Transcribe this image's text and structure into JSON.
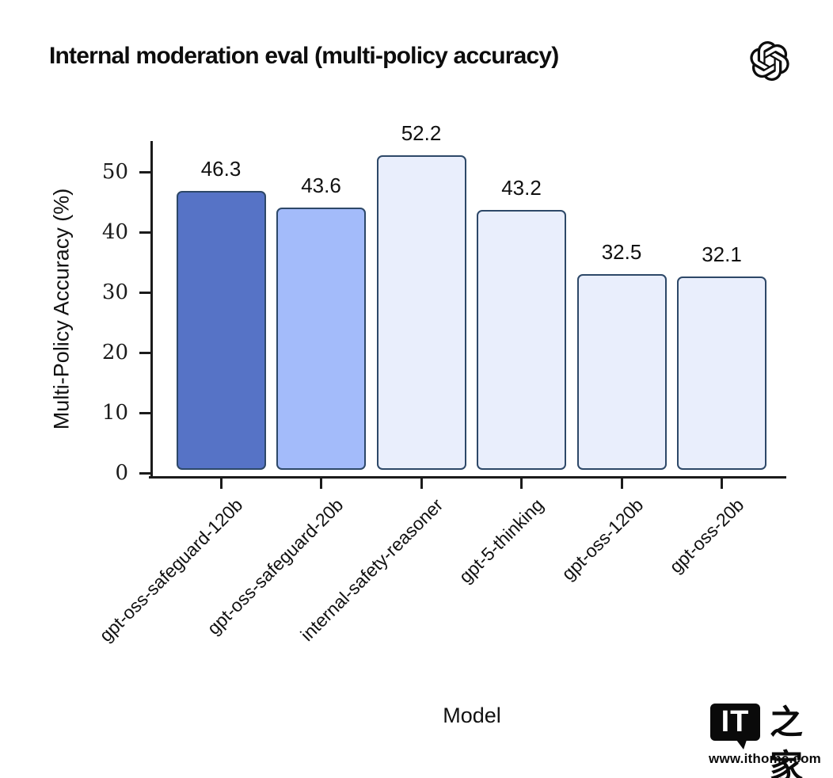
{
  "header": {
    "title": "Internal moderation eval (multi-policy accuracy)",
    "logo_icon": "openai-logo"
  },
  "chart_data": {
    "type": "bar",
    "title": "Internal moderation eval (multi-policy accuracy)",
    "categories": [
      "gpt-oss-safeguard-120b",
      "gpt-oss-safeguard-20b",
      "internal-safety-reasoner",
      "gpt-5-thinking",
      "gpt-oss-120b",
      "gpt-oss-20b"
    ],
    "values": [
      46.3,
      43.6,
      52.2,
      43.2,
      32.5,
      32.1
    ],
    "value_labels": [
      "46.3",
      "43.6",
      "52.2",
      "43.2",
      "32.5",
      "32.1"
    ],
    "bar_colors": [
      "#5673c6",
      "#a3bbfa",
      "#e9eefc",
      "#e9eefc",
      "#e9eefc",
      "#e9eefc"
    ],
    "bar_edge_color": "#2d4868",
    "xlabel": "Model",
    "ylabel": "Multi-Policy Accuracy (%)",
    "yticks": [
      0,
      10,
      20,
      30,
      40,
      50
    ],
    "ylim": [
      0,
      55
    ],
    "grid": false,
    "legend_position": "none",
    "axis_color": "#1b1b1b",
    "background_color": "#ffffff"
  },
  "watermark": {
    "logo_text": "IT",
    "logo_cjk": "之家",
    "url": "www.ithome.com"
  }
}
